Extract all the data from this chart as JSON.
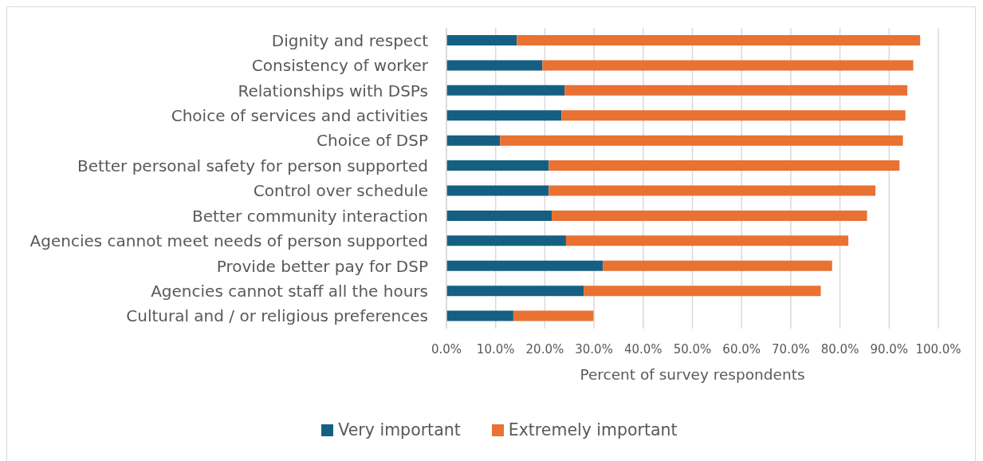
{
  "chart_data": {
    "type": "bar",
    "orientation": "horizontal",
    "stacked": true,
    "categories": [
      "Dignity and respect",
      "Consistency of worker",
      "Relationships with DSPs",
      "Choice of services and activities",
      "Choice of DSP",
      "Better personal safety for person supported",
      "Control over schedule",
      "Better community interaction",
      "Agencies cannot meet needs of person supported",
      "Provide better pay for DSP",
      "Agencies cannot staff all the hours",
      "Cultural and / or religious preferences"
    ],
    "series": [
      {
        "name": "Very important",
        "color": "#156082",
        "values": [
          14.3,
          19.5,
          24.0,
          23.4,
          10.9,
          20.8,
          20.8,
          21.4,
          24.3,
          31.8,
          27.9,
          13.6
        ]
      },
      {
        "name": "Extremely important",
        "color": "#e97132",
        "values": [
          82.0,
          75.4,
          69.7,
          69.9,
          81.9,
          71.3,
          66.4,
          64.1,
          57.4,
          46.6,
          48.2,
          16.3
        ]
      }
    ],
    "xlabel": "Percent of survey respondents",
    "xlim": [
      0,
      100
    ],
    "xticks": [
      {
        "value": 0,
        "label": "0.0%"
      },
      {
        "value": 10,
        "label": "10.0%"
      },
      {
        "value": 20,
        "label": "20.0%"
      },
      {
        "value": 30,
        "label": "30.0%"
      },
      {
        "value": 40,
        "label": "40.0%"
      },
      {
        "value": 50,
        "label": "50.0%"
      },
      {
        "value": 60,
        "label": "60.0%"
      },
      {
        "value": 70,
        "label": "70.0%"
      },
      {
        "value": 80,
        "label": "80.0%"
      },
      {
        "value": 90,
        "label": "90.0%"
      },
      {
        "value": 100,
        "label": "100.0%"
      }
    ],
    "grid": "x",
    "legend": "bottom"
  }
}
